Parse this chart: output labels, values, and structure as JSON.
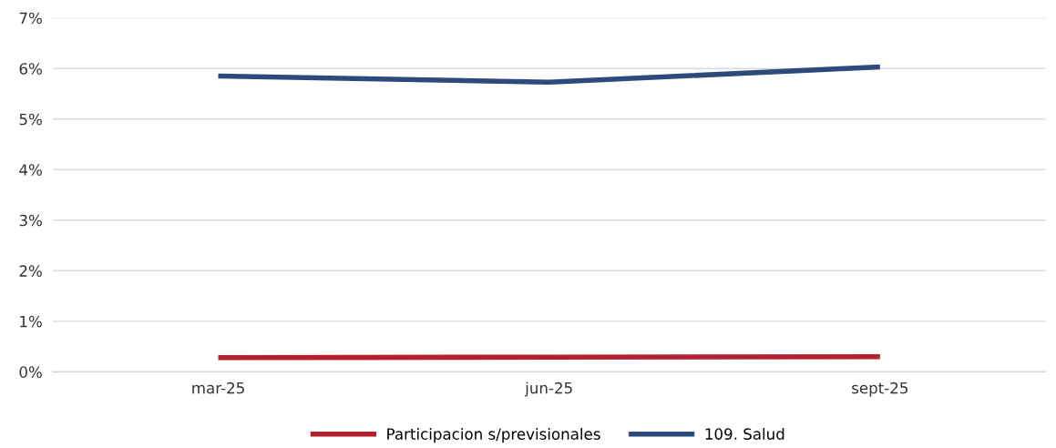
{
  "chart_data": {
    "type": "line",
    "categories": [
      "mar-25",
      "jun-25",
      "sept-25"
    ],
    "series": [
      {
        "name": "Participacion s/previsionales",
        "color": "#b5202e",
        "values": [
          0.28,
          0.29,
          0.3
        ]
      },
      {
        "name": "109. Salud",
        "color": "#2e4a7d",
        "values": [
          5.85,
          5.73,
          6.03
        ]
      }
    ],
    "ylim": [
      0,
      7
    ],
    "yticks": [
      {
        "value": 0,
        "label": "0%"
      },
      {
        "value": 1,
        "label": "1%"
      },
      {
        "value": 2,
        "label": "2%"
      },
      {
        "value": 3,
        "label": "3%"
      },
      {
        "value": 4,
        "label": "4%"
      },
      {
        "value": 5,
        "label": "5%"
      },
      {
        "value": 6,
        "label": "6%"
      },
      {
        "value": 7,
        "label": "7%"
      }
    ],
    "grid": "y",
    "legend": "bottom",
    "marker": "none",
    "line_style": "solid"
  }
}
